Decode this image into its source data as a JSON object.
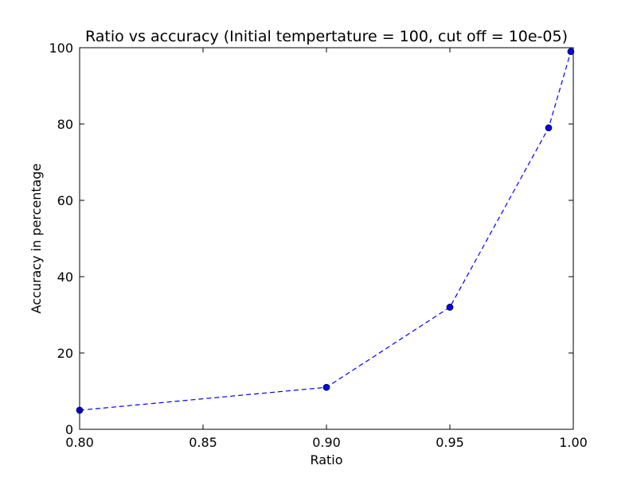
{
  "chart_data": {
    "type": "line",
    "title": "Ratio vs accuracy (Initial tempertature = 100, cut off = 10e-05)",
    "xlabel": "Ratio",
    "ylabel": "Accuracy in percentage",
    "xlim": [
      0.8,
      1.0
    ],
    "ylim": [
      0,
      100
    ],
    "xticks": [
      "0.80",
      "0.85",
      "0.90",
      "0.95",
      "1.00"
    ],
    "yticks": [
      "0",
      "20",
      "40",
      "60",
      "80",
      "100"
    ],
    "grid": false,
    "line_style": "dashed",
    "marker": "circle",
    "series": [
      {
        "x": [
          0.8,
          0.9,
          0.95,
          0.99,
          0.999
        ],
        "y": [
          5,
          11,
          32,
          79,
          99
        ],
        "color": "#0000ff"
      }
    ]
  }
}
